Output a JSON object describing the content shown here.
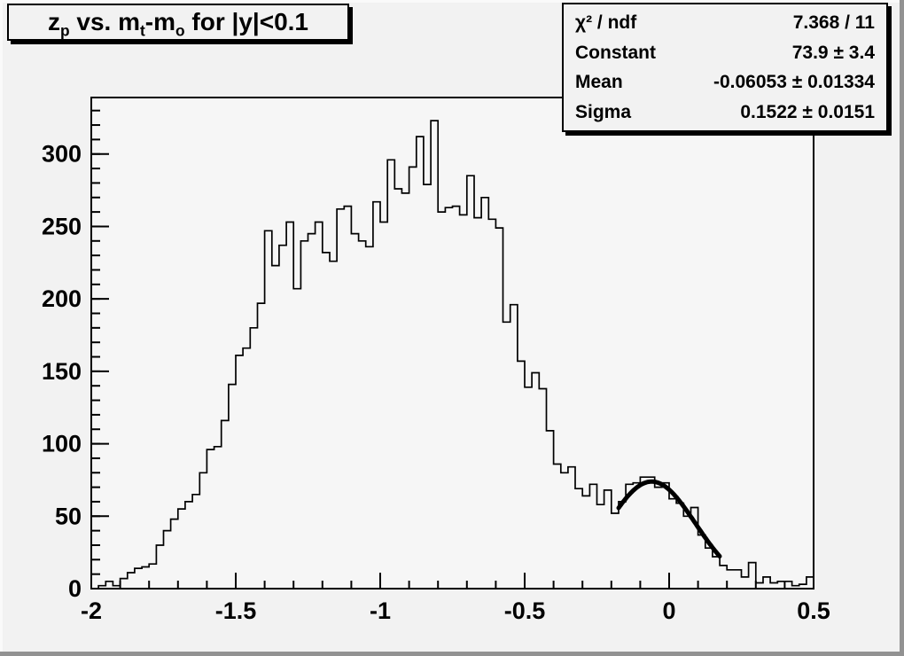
{
  "chart_data": {
    "type": "bar",
    "subtype": "step-histogram-with-gaussian-fit",
    "title": "z_p vs. m_t-m_o for |y|<0.1",
    "title_segments": [
      {
        "text": "z"
      },
      {
        "text": "p",
        "sub": true
      },
      {
        "text": " vs. m"
      },
      {
        "text": "t",
        "sub": true
      },
      {
        "text": "-m"
      },
      {
        "text": "o",
        "sub": true
      },
      {
        "text": " for |y|<0.1"
      }
    ],
    "xlabel": "",
    "ylabel": "",
    "grid": false,
    "legend": false,
    "x_axis": {
      "min": -2.0,
      "max": 0.5,
      "major_ticks": [
        -2,
        -1.5,
        -1,
        -0.5,
        0,
        0.5
      ],
      "major_tick_labels": [
        "-2",
        "-1.5",
        "-1",
        "-0.5",
        "0",
        "0.5"
      ],
      "minor_tick_step": 0.1
    },
    "y_axis": {
      "min": 0,
      "max": 339,
      "major_ticks": [
        0,
        50,
        100,
        150,
        200,
        250,
        300
      ],
      "major_tick_labels": [
        "0",
        "50",
        "100",
        "150",
        "200",
        "250",
        "300"
      ],
      "minor_tick_step": 10
    },
    "bins": {
      "start": -2.0,
      "width": 0.025,
      "values": [
        0,
        2,
        5,
        2,
        7,
        11,
        14,
        15,
        17,
        30,
        40,
        48,
        55,
        60,
        65,
        80,
        96,
        98,
        116,
        141,
        161,
        166,
        180,
        197,
        247,
        223,
        237,
        253,
        207,
        240,
        245,
        253,
        232,
        226,
        262,
        264,
        245,
        240,
        236,
        267,
        253,
        296,
        276,
        273,
        291,
        312,
        279,
        323,
        260,
        263,
        264,
        258,
        285,
        256,
        270,
        255,
        249,
        184,
        196,
        157,
        139,
        149,
        138,
        109,
        86,
        80,
        84,
        69,
        64,
        72,
        58,
        68,
        52,
        60,
        72,
        73,
        77,
        77,
        70,
        73,
        62,
        59,
        50,
        56,
        37,
        28,
        22,
        16,
        13,
        13,
        8,
        18,
        4,
        8,
        4,
        5,
        5,
        2,
        3,
        8
      ]
    },
    "fit": {
      "type": "gaussian",
      "constant": 73.9,
      "mean": -0.06053,
      "sigma": 0.1522,
      "draw_range": [
        -0.175,
        0.175
      ]
    },
    "stats": {
      "rows": [
        {
          "label": "χ² / ndf",
          "value": "7.368 / 11"
        },
        {
          "label": "Constant",
          "value": "73.9 ± 3.4"
        },
        {
          "label": "Mean",
          "value": "-0.06053 ± 0.01334"
        },
        {
          "label": "Sigma",
          "value": "0.1522 ± 0.0151"
        }
      ]
    },
    "colors": {
      "line": "#000000",
      "fit_curve": "#000000",
      "canvas_bg": "#f2f2f2",
      "frame_bg": "#f6f6f6",
      "border_shadow": "#929292"
    }
  }
}
